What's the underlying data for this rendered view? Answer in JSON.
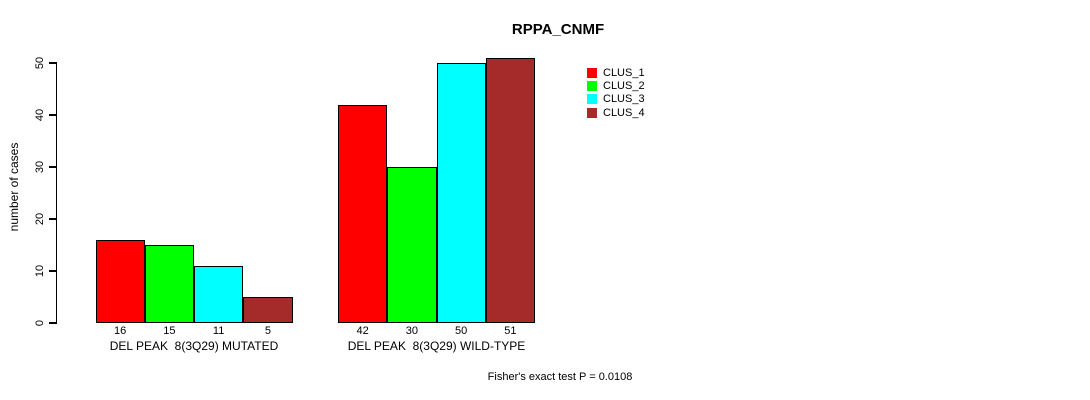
{
  "title": "RPPA_CNMF",
  "footer": "Fisher's exact test P = 0.0108",
  "chart_data": {
    "type": "bar",
    "title": "RPPA_CNMF",
    "xlabel": "",
    "ylabel": "number of cases",
    "ylim": [
      0,
      50
    ],
    "yticks": [
      0,
      10,
      20,
      30,
      40,
      50
    ],
    "grid": false,
    "legend_position": "right",
    "categories": [
      "DEL PEAK  8(3Q29) MUTATED",
      "DEL PEAK  8(3Q29) WILD-TYPE"
    ],
    "series": [
      {
        "name": "CLUS_1",
        "color": "#FF0000",
        "values": [
          16,
          42
        ]
      },
      {
        "name": "CLUS_2",
        "color": "#00FF00",
        "values": [
          15,
          30
        ]
      },
      {
        "name": "CLUS_3",
        "color": "#00FFFF",
        "values": [
          11,
          50
        ]
      },
      {
        "name": "CLUS_4",
        "color": "#A52A2A",
        "values": [
          5,
          51
        ]
      }
    ],
    "bar_value_labels": [
      [
        16,
        15,
        11,
        5
      ],
      [
        42,
        30,
        50,
        51
      ]
    ],
    "annotation": "Fisher's exact test P = 0.0108"
  }
}
